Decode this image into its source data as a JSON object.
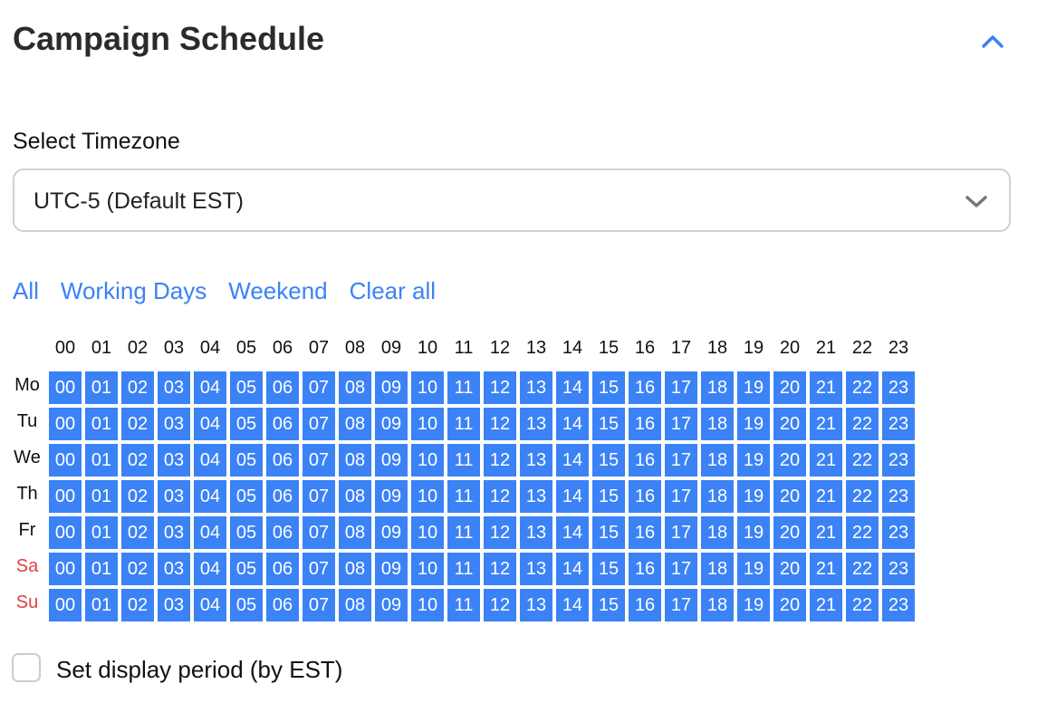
{
  "title": "Campaign Schedule",
  "collapse_icon": "chevron-up-icon",
  "timezone": {
    "label": "Select Timezone",
    "value": "UTC-5 (Default EST)",
    "icon": "chevron-down-icon"
  },
  "quick_select": [
    "All",
    "Working Days",
    "Weekend",
    "Clear all"
  ],
  "hours": [
    "00",
    "01",
    "02",
    "03",
    "04",
    "05",
    "06",
    "07",
    "08",
    "09",
    "10",
    "11",
    "12",
    "13",
    "14",
    "15",
    "16",
    "17",
    "18",
    "19",
    "20",
    "21",
    "22",
    "23"
  ],
  "days": [
    {
      "label": "Mo",
      "weekend": false,
      "all_hours_selected": true
    },
    {
      "label": "Tu",
      "weekend": false,
      "all_hours_selected": true
    },
    {
      "label": "We",
      "weekend": false,
      "all_hours_selected": true
    },
    {
      "label": "Th",
      "weekend": false,
      "all_hours_selected": true
    },
    {
      "label": "Fr",
      "weekend": false,
      "all_hours_selected": true
    },
    {
      "label": "Sa",
      "weekend": true,
      "all_hours_selected": true
    },
    {
      "label": "Su",
      "weekend": true,
      "all_hours_selected": true
    }
  ],
  "display_period": {
    "label": "Set display period (by EST)",
    "checked": false
  },
  "colors": {
    "accent": "#3b82f6",
    "weekend": "#e04040"
  }
}
